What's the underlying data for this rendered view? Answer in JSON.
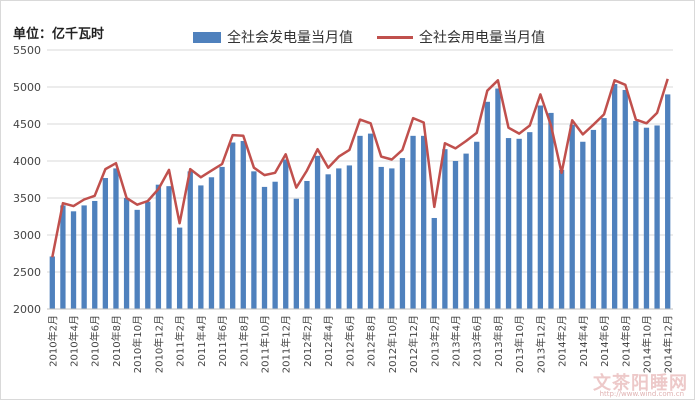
{
  "chart_data": {
    "type": "bar+line",
    "unit_label": "单位：亿千瓦时",
    "ylim": [
      2000,
      5500
    ],
    "y_ticks": [
      2000,
      2500,
      3000,
      3500,
      4000,
      4500,
      5000,
      5500
    ],
    "grid": true,
    "legend_position": "top-center",
    "categories": [
      "2010年2月",
      "2010年3月",
      "2010年4月",
      "2010年5月",
      "2010年6月",
      "2010年7月",
      "2010年8月",
      "2010年9月",
      "2010年10月",
      "2010年11月",
      "2010年12月",
      "2011年1月",
      "2011年2月",
      "2011年3月",
      "2011年4月",
      "2011年5月",
      "2011年6月",
      "2011年7月",
      "2011年8月",
      "2011年9月",
      "2011年10月",
      "2011年11月",
      "2011年12月",
      "2012年1月",
      "2012年2月",
      "2012年3月",
      "2012年4月",
      "2012年5月",
      "2012年6月",
      "2012年7月",
      "2012年8月",
      "2012年9月",
      "2012年10月",
      "2012年11月",
      "2012年12月",
      "2013年1月",
      "2013年2月",
      "2013年3月",
      "2013年4月",
      "2013年5月",
      "2013年6月",
      "2013年7月",
      "2013年8月",
      "2013年9月",
      "2013年10月",
      "2013年11月",
      "2013年12月",
      "2014年1月",
      "2014年2月",
      "2014年3月",
      "2014年4月",
      "2014年5月",
      "2014年6月",
      "2014年7月",
      "2014年8月",
      "2014年9月",
      "2014年10月",
      "2014年11月",
      "2014年12月"
    ],
    "x_tick_labels": [
      "2010年2月",
      "2010年4月",
      "2010年6月",
      "2010年8月",
      "2010年10月",
      "2010年12月",
      "2011年2月",
      "2011年4月",
      "2011年6月",
      "2011年8月",
      "2011年10月",
      "2011年12月",
      "2012年2月",
      "2012年4月",
      "2012年6月",
      "2012年8月",
      "2012年10月",
      "2012年12月",
      "2013年2月",
      "2013年4月",
      "2013年6月",
      "2013年8月",
      "2013年10月",
      "2013年12月",
      "2014年2月",
      "2014年4月",
      "2014年6月",
      "2014年8月",
      "2014年10月",
      "2014年12月"
    ],
    "series": [
      {
        "name": "全社会发电量当月值",
        "kind": "bar",
        "color": "#4f81bd",
        "values": [
          2710,
          3400,
          3320,
          3400,
          3460,
          3770,
          3900,
          3500,
          3340,
          3450,
          3680,
          3660,
          3100,
          3860,
          3670,
          3780,
          3920,
          4250,
          4270,
          3860,
          3650,
          3720,
          4020,
          3490,
          3730,
          4070,
          3820,
          3900,
          3940,
          4340,
          4370,
          3920,
          3900,
          4040,
          4340,
          4340,
          3230,
          4160,
          4000,
          4100,
          4260,
          4800,
          4980,
          4310,
          4300,
          4390,
          4750,
          4650,
          3880,
          4490,
          4260,
          4420,
          4580,
          5040,
          4960,
          4540,
          4450,
          4480,
          4900
        ]
      },
      {
        "name": "全社会用电量当月值",
        "kind": "line",
        "color": "#c0504d",
        "values": [
          2700,
          3430,
          3390,
          3480,
          3530,
          3890,
          3970,
          3500,
          3410,
          3460,
          3620,
          3880,
          3160,
          3890,
          3780,
          3870,
          3960,
          4350,
          4340,
          3910,
          3810,
          3840,
          4090,
          3640,
          3870,
          4160,
          3910,
          4060,
          4150,
          4560,
          4510,
          4060,
          4020,
          4150,
          4580,
          4520,
          3380,
          4240,
          4170,
          4270,
          4380,
          4950,
          5090,
          4450,
          4370,
          4480,
          4900,
          4480,
          3840,
          4550,
          4360,
          4490,
          4630,
          5090,
          5030,
          4560,
          4510,
          4650,
          5110
        ]
      }
    ]
  },
  "watermark": "文茶阳睡网",
  "watermark_url": "http://www.wind.com.cn"
}
